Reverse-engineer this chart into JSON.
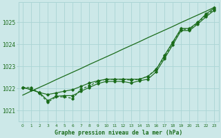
{
  "bg_color": "#cce8e8",
  "grid_color": "#aad4d4",
  "line_color": "#1a6b1a",
  "marker_color": "#1a6b1a",
  "title": "Graphe pression niveau de la mer (hPa)",
  "title_color": "#1a6b1a",
  "xlim": [
    -0.5,
    23.5
  ],
  "ylim": [
    1020.5,
    1025.9
  ],
  "yticks": [
    1021,
    1022,
    1023,
    1024,
    1025
  ],
  "xticks": [
    0,
    1,
    2,
    3,
    4,
    5,
    6,
    7,
    8,
    9,
    10,
    11,
    12,
    13,
    14,
    15,
    16,
    17,
    18,
    19,
    20,
    21,
    22,
    23
  ],
  "series": {
    "trend": [
      1021.7,
      1021.88,
      1022.05,
      1022.22,
      1022.4,
      1022.57,
      1022.74,
      1022.91,
      1023.09,
      1023.26,
      1023.43,
      1023.6,
      1023.78,
      1023.95,
      1024.12,
      1024.3,
      1024.47,
      1024.64,
      1024.81,
      1024.99,
      1025.16,
      1025.33,
      1025.5,
      1025.68
    ],
    "upper": [
      1022.05,
      1021.95,
      1021.82,
      1021.73,
      1021.8,
      1021.88,
      1021.95,
      1022.1,
      1022.25,
      1022.35,
      1022.42,
      1022.42,
      1022.42,
      1022.42,
      1022.42,
      1022.55,
      1022.85,
      1023.5,
      1024.1,
      1024.72,
      1024.72,
      1025.0,
      1025.38,
      1025.65
    ],
    "lower": [
      1022.05,
      1021.95,
      1021.82,
      1021.45,
      1021.65,
      1021.68,
      1021.68,
      1021.88,
      1022.05,
      1022.22,
      1022.32,
      1022.32,
      1022.32,
      1022.25,
      1022.35,
      1022.42,
      1022.75,
      1023.35,
      1023.98,
      1024.62,
      1024.62,
      1024.92,
      1025.25,
      1025.55
    ],
    "curved": [
      1022.05,
      1022.05,
      1021.78,
      1021.38,
      1021.62,
      1021.62,
      1021.55,
      1021.98,
      1022.12,
      1022.32,
      1022.42,
      1022.42,
      1022.42,
      1022.38,
      1022.42,
      1022.55,
      1022.88,
      1023.42,
      1024.08,
      1024.68,
      1024.68,
      1024.98,
      1025.32,
      1025.6
    ]
  }
}
